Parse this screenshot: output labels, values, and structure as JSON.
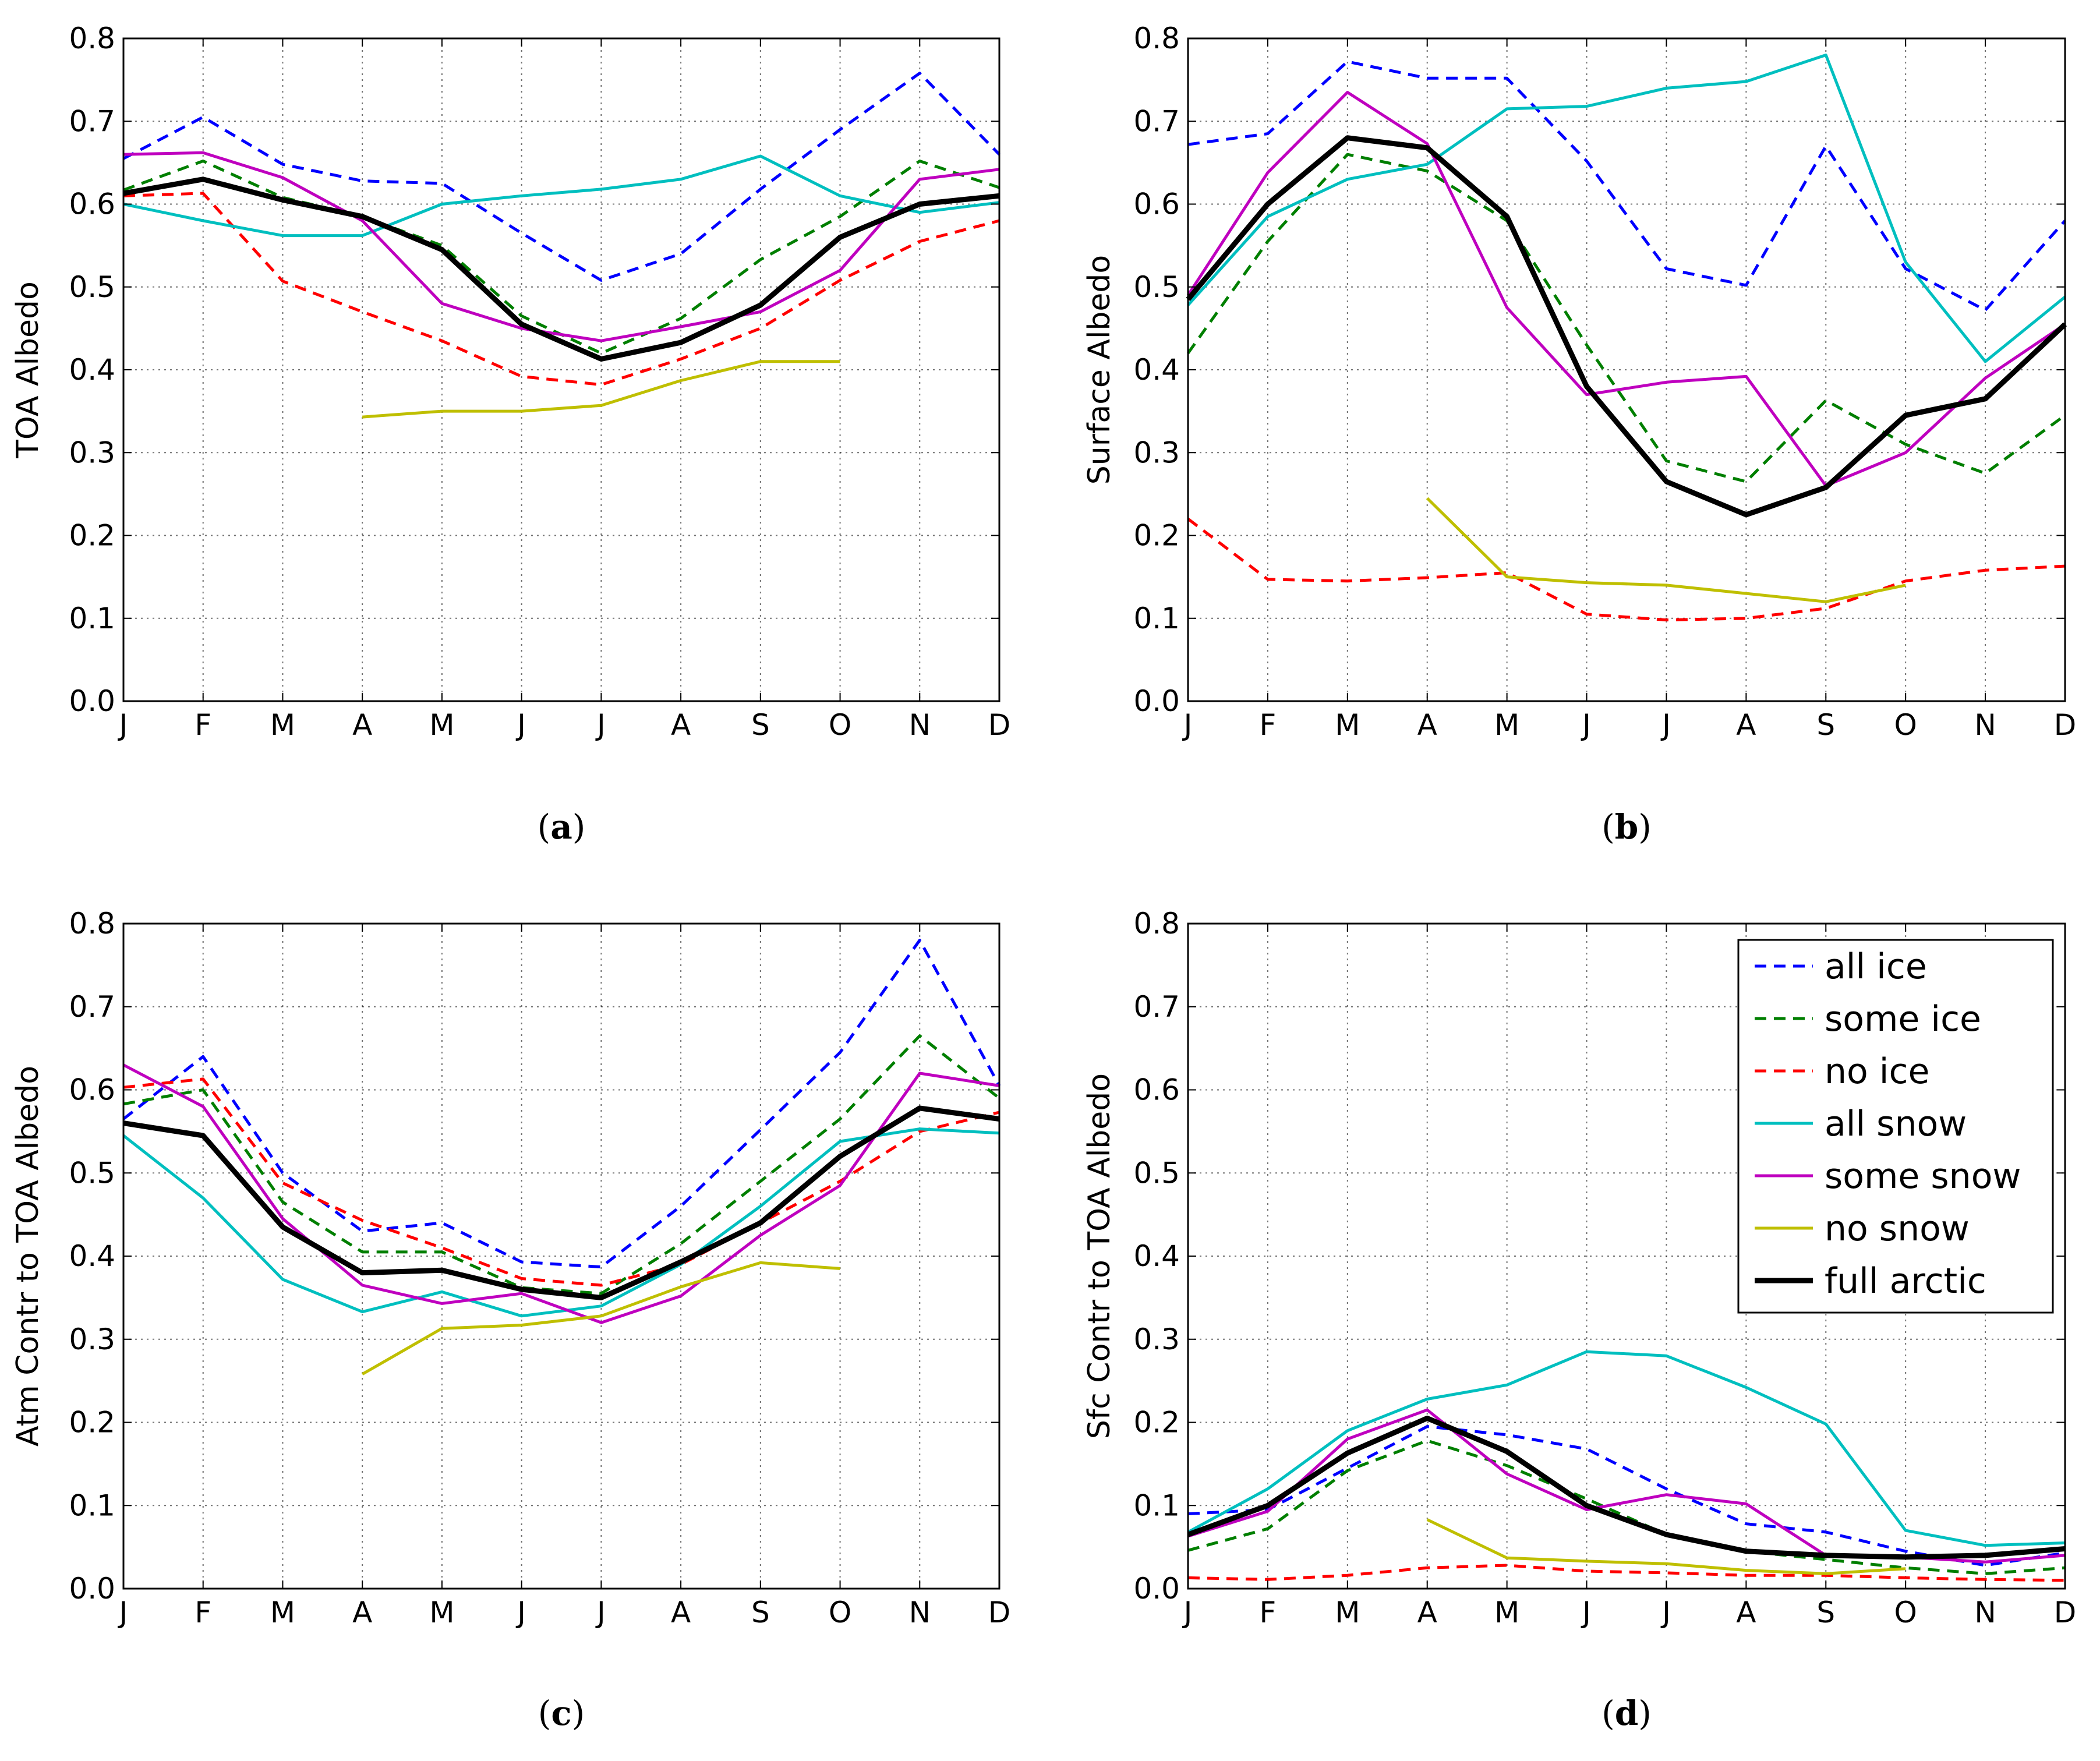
{
  "chart_data": [
    {
      "type": "line",
      "panel_label": "a",
      "title": "",
      "xlabel": "",
      "ylabel": "TOA Albedo",
      "categories": [
        "J",
        "F",
        "M",
        "A",
        "M",
        "J",
        "J",
        "A",
        "S",
        "O",
        "N",
        "D"
      ],
      "ylim": [
        0.0,
        0.8
      ],
      "yticks": [
        "0.0",
        "0.1",
        "0.2",
        "0.3",
        "0.4",
        "0.5",
        "0.6",
        "0.7",
        "0.8"
      ],
      "grid": true,
      "series": [
        {
          "name": "all ice",
          "values": [
            0.655,
            0.705,
            0.648,
            0.628,
            0.625,
            0.565,
            0.508,
            0.54,
            0.618,
            0.69,
            0.758,
            0.66
          ]
        },
        {
          "name": "some ice",
          "values": [
            0.617,
            0.652,
            0.608,
            0.585,
            0.55,
            0.465,
            0.42,
            0.462,
            0.533,
            0.585,
            0.652,
            0.62
          ]
        },
        {
          "name": "no ice",
          "values": [
            0.61,
            0.613,
            0.507,
            0.47,
            0.435,
            0.392,
            0.382,
            0.413,
            0.45,
            0.508,
            0.555,
            0.58
          ]
        },
        {
          "name": "all snow",
          "values": [
            0.6,
            0.58,
            0.562,
            0.562,
            0.6,
            0.61,
            0.618,
            0.63,
            0.658,
            0.61,
            0.59,
            0.602
          ]
        },
        {
          "name": "some snow",
          "values": [
            0.66,
            0.662,
            0.632,
            0.58,
            0.48,
            0.45,
            0.435,
            0.452,
            0.47,
            0.52,
            0.63,
            0.642
          ]
        },
        {
          "name": "no snow",
          "values": [
            null,
            null,
            null,
            0.343,
            0.35,
            0.35,
            0.357,
            0.387,
            0.41,
            0.41,
            null,
            null
          ]
        },
        {
          "name": "full arctic",
          "values": [
            0.613,
            0.63,
            0.605,
            0.585,
            0.545,
            0.455,
            0.413,
            0.433,
            0.478,
            0.56,
            0.6,
            0.61
          ]
        }
      ]
    },
    {
      "type": "line",
      "panel_label": "b",
      "title": "",
      "xlabel": "",
      "ylabel": "Surface Albedo",
      "categories": [
        "J",
        "F",
        "M",
        "A",
        "M",
        "J",
        "J",
        "A",
        "S",
        "O",
        "N",
        "D"
      ],
      "ylim": [
        0.0,
        0.8
      ],
      "yticks": [
        "0.0",
        "0.1",
        "0.2",
        "0.3",
        "0.4",
        "0.5",
        "0.6",
        "0.7",
        "0.8"
      ],
      "grid": true,
      "series": [
        {
          "name": "all ice",
          "values": [
            0.672,
            0.685,
            0.772,
            0.752,
            0.752,
            0.652,
            0.522,
            0.502,
            0.67,
            0.522,
            0.472,
            0.58
          ]
        },
        {
          "name": "some ice",
          "values": [
            0.42,
            0.555,
            0.66,
            0.64,
            0.58,
            0.43,
            0.29,
            0.265,
            0.363,
            0.31,
            0.275,
            0.345
          ]
        },
        {
          "name": "no ice",
          "values": [
            0.22,
            0.147,
            0.145,
            0.149,
            0.155,
            0.105,
            0.098,
            0.1,
            0.112,
            0.145,
            0.158,
            0.163
          ]
        },
        {
          "name": "all snow",
          "values": [
            0.478,
            0.585,
            0.63,
            0.648,
            0.715,
            0.718,
            0.74,
            0.748,
            0.78,
            0.53,
            0.41,
            0.488
          ]
        },
        {
          "name": "some snow",
          "values": [
            0.49,
            0.638,
            0.735,
            0.673,
            0.475,
            0.37,
            0.385,
            0.392,
            0.26,
            0.3,
            0.39,
            0.455
          ]
        },
        {
          "name": "no snow",
          "values": [
            null,
            null,
            null,
            0.245,
            0.15,
            0.143,
            0.14,
            0.13,
            0.12,
            0.14,
            null,
            null
          ]
        },
        {
          "name": "full arctic",
          "values": [
            0.485,
            0.6,
            0.68,
            0.668,
            0.585,
            0.38,
            0.265,
            0.225,
            0.258,
            0.345,
            0.365,
            0.455
          ]
        }
      ]
    },
    {
      "type": "line",
      "panel_label": "c",
      "title": "",
      "xlabel": "",
      "ylabel": "Atm Contr to TOA Albedo",
      "categories": [
        "J",
        "F",
        "M",
        "A",
        "M",
        "J",
        "J",
        "A",
        "S",
        "O",
        "N",
        "D"
      ],
      "ylim": [
        0.0,
        0.8
      ],
      "yticks": [
        "0.0",
        "0.1",
        "0.2",
        "0.3",
        "0.4",
        "0.5",
        "0.6",
        "0.7",
        "0.8"
      ],
      "grid": true,
      "series": [
        {
          "name": "all ice",
          "values": [
            0.565,
            0.64,
            0.5,
            0.43,
            0.44,
            0.393,
            0.387,
            0.46,
            0.552,
            0.645,
            0.78,
            0.605
          ]
        },
        {
          "name": "some ice",
          "values": [
            0.583,
            0.6,
            0.465,
            0.405,
            0.405,
            0.362,
            0.355,
            0.415,
            0.49,
            0.565,
            0.665,
            0.59
          ]
        },
        {
          "name": "no ice",
          "values": [
            0.603,
            0.613,
            0.488,
            0.443,
            0.41,
            0.373,
            0.365,
            0.39,
            0.44,
            0.49,
            0.55,
            0.573
          ]
        },
        {
          "name": "all snow",
          "values": [
            0.545,
            0.47,
            0.372,
            0.333,
            0.357,
            0.328,
            0.34,
            0.39,
            0.46,
            0.538,
            0.553,
            0.548
          ]
        },
        {
          "name": "some snow",
          "values": [
            0.63,
            0.58,
            0.445,
            0.365,
            0.343,
            0.355,
            0.32,
            0.352,
            0.425,
            0.485,
            0.62,
            0.605
          ]
        },
        {
          "name": "no snow",
          "values": [
            null,
            null,
            null,
            0.258,
            0.313,
            0.317,
            0.328,
            0.363,
            0.392,
            0.385,
            null,
            null
          ]
        },
        {
          "name": "full arctic",
          "values": [
            0.56,
            0.545,
            0.435,
            0.38,
            0.383,
            0.36,
            0.35,
            0.393,
            0.44,
            0.52,
            0.578,
            0.565
          ]
        }
      ]
    },
    {
      "type": "line",
      "panel_label": "d",
      "title": "",
      "xlabel": "",
      "ylabel": "Sfc Contr to TOA Albedo",
      "categories": [
        "J",
        "F",
        "M",
        "A",
        "M",
        "J",
        "J",
        "A",
        "S",
        "O",
        "N",
        "D"
      ],
      "ylim": [
        0.0,
        0.8
      ],
      "yticks": [
        "0.0",
        "0.1",
        "0.2",
        "0.3",
        "0.4",
        "0.5",
        "0.6",
        "0.7",
        "0.8"
      ],
      "grid": true,
      "legend_position": "top-right",
      "series": [
        {
          "name": "all ice",
          "values": [
            0.09,
            0.095,
            0.145,
            0.195,
            0.185,
            0.168,
            0.12,
            0.078,
            0.068,
            0.045,
            0.028,
            0.043
          ]
        },
        {
          "name": "some ice",
          "values": [
            0.046,
            0.072,
            0.142,
            0.178,
            0.148,
            0.108,
            0.065,
            0.045,
            0.035,
            0.025,
            0.018,
            0.025
          ]
        },
        {
          "name": "no ice",
          "values": [
            0.013,
            0.011,
            0.016,
            0.025,
            0.028,
            0.021,
            0.019,
            0.016,
            0.016,
            0.013,
            0.011,
            0.01
          ]
        },
        {
          "name": "all snow",
          "values": [
            0.068,
            0.12,
            0.19,
            0.228,
            0.245,
            0.285,
            0.28,
            0.242,
            0.198,
            0.07,
            0.052,
            0.055
          ]
        },
        {
          "name": "some snow",
          "values": [
            0.063,
            0.093,
            0.18,
            0.215,
            0.138,
            0.095,
            0.113,
            0.102,
            0.04,
            0.038,
            0.032,
            0.04
          ]
        },
        {
          "name": "no snow",
          "values": [
            null,
            null,
            null,
            0.083,
            0.037,
            0.033,
            0.03,
            0.022,
            0.018,
            0.024,
            null,
            null
          ]
        },
        {
          "name": "full arctic",
          "values": [
            0.065,
            0.1,
            0.163,
            0.205,
            0.165,
            0.1,
            0.065,
            0.045,
            0.04,
            0.038,
            0.04,
            0.048
          ]
        }
      ]
    }
  ],
  "styles": {
    "all ice": {
      "color": "#0000ff",
      "dashed": true
    },
    "some ice": {
      "color": "#007f00",
      "dashed": true
    },
    "no ice": {
      "color": "#ff0000",
      "dashed": true
    },
    "all snow": {
      "color": "#00bfbf",
      "dashed": false
    },
    "some snow": {
      "color": "#bf00bf",
      "dashed": false
    },
    "no snow": {
      "color": "#bfbf00",
      "dashed": false
    },
    "full arctic": {
      "color": "#000000",
      "dashed": false,
      "bold": true
    }
  },
  "legend": {
    "entries": [
      "all ice",
      "some ice",
      "no ice",
      "all snow",
      "some snow",
      "no snow",
      "full arctic"
    ]
  }
}
